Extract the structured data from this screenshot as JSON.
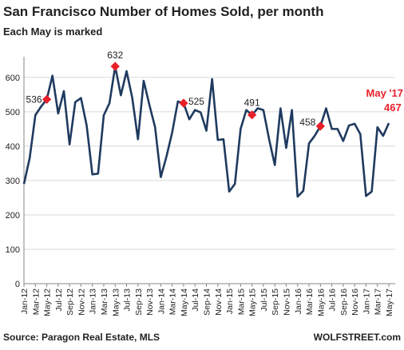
{
  "chart_data": {
    "type": "line",
    "title": "San Francisco Number of Homes Sold, per month",
    "subtitle": "Each May is marked",
    "source": "Source: Paragon Real Estate, MLS",
    "credit": "WOLFSTREET.com",
    "annotation": "May '17",
    "annotation_color": "#e8202a",
    "categories": [
      "Jan-12",
      null,
      "Mar-12",
      null,
      "May-12",
      null,
      "Jul-12",
      null,
      "Sep-12",
      null,
      "Nov-12",
      null,
      "Jan-13",
      null,
      "Mar-13",
      null,
      "May-13",
      null,
      "Jul-13",
      null,
      "Sep-13",
      null,
      "Nov-13",
      null,
      "Jan-14",
      null,
      "Mar-14",
      null,
      "May-14",
      null,
      "Jul-14",
      null,
      "Sep-14",
      null,
      "Nov-14",
      null,
      "Jan-15",
      null,
      "Mar-15",
      null,
      "May-15",
      null,
      "Jul-15",
      null,
      "Sep-15",
      null,
      "Nov-15",
      null,
      "Jan-16",
      null,
      "Mar-16",
      null,
      "May-16",
      null,
      "Jul-16",
      null,
      "Sep-16",
      null,
      "Nov-16",
      null,
      "Jan-17",
      null,
      "Mar-17",
      null,
      "May-17"
    ],
    "series": [
      {
        "name": "Homes sold",
        "color": "#1f3a5f",
        "marker_color": "#e8202a",
        "values": [
          290,
          365,
          490,
          515,
          536,
          605,
          495,
          560,
          405,
          528,
          540,
          460,
          318,
          320,
          490,
          525,
          632,
          548,
          618,
          540,
          420,
          590,
          520,
          455,
          310,
          370,
          440,
          530,
          525,
          478,
          505,
          498,
          445,
          595,
          418,
          420,
          268,
          290,
          450,
          505,
          491,
          510,
          505,
          420,
          345,
          510,
          395,
          505,
          253,
          270,
          408,
          430,
          458,
          510,
          450,
          450,
          415,
          460,
          465,
          435,
          255,
          268,
          455,
          430,
          467
        ],
        "value_labels": [
          null,
          null,
          null,
          null,
          "536",
          null,
          null,
          null,
          null,
          null,
          null,
          null,
          null,
          null,
          null,
          null,
          "632",
          null,
          null,
          null,
          null,
          null,
          null,
          null,
          null,
          null,
          null,
          null,
          "525",
          null,
          null,
          null,
          null,
          null,
          null,
          null,
          null,
          null,
          null,
          null,
          "491",
          null,
          null,
          null,
          null,
          null,
          null,
          null,
          null,
          null,
          null,
          null,
          "458",
          null,
          null,
          null,
          null,
          null,
          null,
          null,
          null,
          null,
          null,
          null,
          "467"
        ]
      }
    ],
    "ylim": [
      0,
      660
    ],
    "yticks": [
      0,
      100,
      200,
      300,
      400,
      500,
      600
    ],
    "grid": true
  }
}
